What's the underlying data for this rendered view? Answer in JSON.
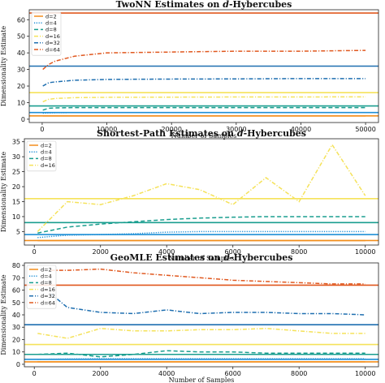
{
  "figure": {
    "colors": {
      "d2": "#f28e1c",
      "d4": "#1f8fd6",
      "d8": "#1a9e8f",
      "d16": "#f5e25a",
      "d32": "#1f6fb0",
      "d64": "#e0581f"
    },
    "ref_colors": {
      "d2": "#f28e1c",
      "d4": "#1f8fd6",
      "d8": "#1a9e8f",
      "d16": "#f5e25a",
      "d32": "#1f6fb0",
      "d64": "#e0581f"
    }
  },
  "chart_data": [
    {
      "type": "line",
      "title": "TwoNN Estimates on d-Hybercubes",
      "title_prefix": "TwoNN Estimates on ",
      "title_var": "d",
      "title_suffix": "-Hybercubes",
      "xlabel": "Number of Samples",
      "ylabel": "Dimensionality Estimate",
      "xlim": [
        -2000,
        52000
      ],
      "ylim": [
        -2,
        66
      ],
      "xticks": [
        0,
        10000,
        20000,
        30000,
        40000,
        50000
      ],
      "yticks": [
        0,
        10,
        20,
        30,
        40,
        50,
        60
      ],
      "grid": false,
      "legend": "top-left",
      "reference_lines": [
        {
          "key": "d2",
          "value": 2
        },
        {
          "key": "d4",
          "value": 4
        },
        {
          "key": "d8",
          "value": 8
        },
        {
          "key": "d16",
          "value": 16
        },
        {
          "key": "d32",
          "value": 32
        },
        {
          "key": "d64",
          "value": 64
        }
      ],
      "series": [
        {
          "name": "d=2",
          "key": "d2",
          "style": "solid",
          "x": [
            100,
            1000,
            2000,
            5000,
            10000,
            20000,
            30000,
            40000,
            50000
          ],
          "values": [
            2,
            2,
            2,
            2,
            2,
            2,
            2,
            2,
            2
          ]
        },
        {
          "name": "d=4",
          "key": "d4",
          "style": "dotted",
          "x": [
            100,
            1000,
            2000,
            5000,
            10000,
            20000,
            30000,
            40000,
            50000
          ],
          "values": [
            3.6,
            3.8,
            3.9,
            4,
            4,
            4,
            4,
            4,
            4
          ]
        },
        {
          "name": "d=8",
          "key": "d8",
          "style": "dashed",
          "x": [
            100,
            1000,
            2000,
            5000,
            10000,
            20000,
            30000,
            40000,
            50000
          ],
          "values": [
            5.5,
            6.6,
            6.8,
            7,
            7,
            7,
            7,
            7,
            7
          ]
        },
        {
          "name": "d=16",
          "key": "d16",
          "style": "dashdot",
          "x": [
            100,
            1000,
            2000,
            5000,
            10000,
            20000,
            30000,
            40000,
            50000
          ],
          "values": [
            10.5,
            12,
            12.5,
            13,
            13.2,
            13.3,
            13.4,
            13.4,
            13.5
          ]
        },
        {
          "name": "d=32",
          "key": "d32",
          "style": "dashdot",
          "x": [
            100,
            1000,
            2000,
            5000,
            10000,
            20000,
            30000,
            40000,
            50000
          ],
          "values": [
            20,
            22,
            22.5,
            23.5,
            24,
            24.2,
            24.3,
            24.5,
            24.5
          ]
        },
        {
          "name": "d=64",
          "key": "d64",
          "style": "dashdot",
          "x": [
            100,
            1000,
            2000,
            5000,
            10000,
            20000,
            30000,
            40000,
            50000
          ],
          "values": [
            30,
            33,
            35,
            38,
            40,
            40.5,
            41,
            41,
            41.5
          ]
        }
      ]
    },
    {
      "type": "line",
      "title": "Shortest-Path Estimates on d-Hybercubes",
      "title_prefix": "Shortest-Path Estimates on ",
      "title_var": "d",
      "title_suffix": "-Hybercubes",
      "xlabel": "Number of Samples",
      "ylabel": "Dimensionality Estimate",
      "xlim": [
        -300,
        10400
      ],
      "ylim": [
        0.5,
        36
      ],
      "xticks": [
        0,
        2000,
        4000,
        6000,
        8000,
        10000
      ],
      "yticks": [
        5,
        10,
        15,
        20,
        25,
        30,
        35
      ],
      "grid": false,
      "legend": "top-left",
      "reference_lines": [
        {
          "key": "d2",
          "value": 2
        },
        {
          "key": "d4",
          "value": 4
        },
        {
          "key": "d8",
          "value": 8
        },
        {
          "key": "d16",
          "value": 16
        }
      ],
      "series": [
        {
          "name": "d=2",
          "key": "d2",
          "style": "solid",
          "x": [
            100,
            1000,
            2000,
            3000,
            4000,
            5000,
            6000,
            7000,
            8000,
            9000,
            10000
          ],
          "values": [
            2,
            2,
            2,
            2,
            2,
            2,
            2,
            2,
            2,
            2,
            2
          ]
        },
        {
          "name": "d=4",
          "key": "d4",
          "style": "dotted",
          "x": [
            100,
            1000,
            2000,
            3000,
            4000,
            5000,
            6000,
            7000,
            8000,
            9000,
            10000
          ],
          "values": [
            3,
            3.8,
            4,
            4.3,
            4.8,
            5,
            5,
            5,
            5,
            5,
            5
          ]
        },
        {
          "name": "d=8",
          "key": "d8",
          "style": "dashed",
          "x": [
            100,
            1000,
            2000,
            3000,
            4000,
            5000,
            6000,
            7000,
            8000,
            9000,
            10000
          ],
          "values": [
            4.5,
            6.5,
            7.5,
            8.3,
            9,
            9.5,
            9.8,
            10,
            10,
            10,
            10
          ]
        },
        {
          "name": "d=16",
          "key": "d16",
          "style": "dashdot",
          "x": [
            100,
            1000,
            2000,
            3000,
            4000,
            5000,
            6000,
            7000,
            8000,
            9000,
            10000
          ],
          "values": [
            5,
            15,
            14,
            17,
            21,
            19,
            14,
            23,
            15,
            34,
            17
          ]
        }
      ]
    },
    {
      "type": "line",
      "title": "GeoMLE Estimates on d-Hybercubes",
      "title_prefix": "GeoMLE Estimates on ",
      "title_var": "d",
      "title_suffix": "-Hybercubes",
      "xlabel": "Number of Samples",
      "ylabel": "Dimensionality Estimate",
      "xlim": [
        -300,
        10400
      ],
      "ylim": [
        -2,
        82
      ],
      "xticks": [
        0,
        2000,
        4000,
        6000,
        8000,
        10000
      ],
      "yticks": [
        0,
        10,
        20,
        30,
        40,
        50,
        60,
        70,
        80
      ],
      "grid": false,
      "legend": "top-left",
      "reference_lines": [
        {
          "key": "d2",
          "value": 2
        },
        {
          "key": "d4",
          "value": 4
        },
        {
          "key": "d8",
          "value": 8
        },
        {
          "key": "d16",
          "value": 16
        },
        {
          "key": "d32",
          "value": 32
        },
        {
          "key": "d64",
          "value": 64
        }
      ],
      "series": [
        {
          "name": "d=2",
          "key": "d2",
          "style": "solid",
          "x": [
            100,
            1000,
            2000,
            3000,
            4000,
            5000,
            6000,
            7000,
            8000,
            9000,
            10000
          ],
          "values": [
            2,
            2,
            2,
            2,
            2,
            2,
            2,
            2,
            2,
            2,
            2
          ]
        },
        {
          "name": "d=4",
          "key": "d4",
          "style": "dotted",
          "x": [
            100,
            1000,
            2000,
            3000,
            4000,
            5000,
            6000,
            7000,
            8000,
            9000,
            10000
          ],
          "values": [
            4,
            4.3,
            4.5,
            4.5,
            4.5,
            4.5,
            4.5,
            4.5,
            4.5,
            4.5,
            4.5
          ]
        },
        {
          "name": "d=8",
          "key": "d8",
          "style": "dashed",
          "x": [
            100,
            1000,
            2000,
            3000,
            4000,
            5000,
            6000,
            7000,
            8000,
            9000,
            10000
          ],
          "values": [
            8,
            9,
            6,
            8,
            11,
            10,
            10,
            9,
            9,
            9,
            9
          ]
        },
        {
          "name": "d=16",
          "key": "d16",
          "style": "dashdot",
          "x": [
            100,
            1000,
            2000,
            3000,
            4000,
            5000,
            6000,
            7000,
            8000,
            9000,
            10000
          ],
          "values": [
            25,
            21,
            29,
            27,
            27,
            28,
            28,
            29,
            27,
            25,
            25
          ]
        },
        {
          "name": "d=32",
          "key": "d32",
          "style": "dashdot",
          "x": [
            500,
            1000,
            2000,
            3000,
            4000,
            5000,
            6000,
            7000,
            8000,
            9000,
            10000
          ],
          "values": [
            57,
            46,
            42,
            41,
            44,
            41,
            42,
            42,
            41,
            41,
            40
          ]
        },
        {
          "name": "d=64",
          "key": "d64",
          "style": "dashdot",
          "x": [
            500,
            1000,
            2000,
            3000,
            4000,
            5000,
            6000,
            7000,
            8000,
            9000,
            10000
          ],
          "values": [
            76,
            76,
            77,
            74,
            72,
            70,
            68,
            67,
            66,
            65,
            65
          ]
        }
      ]
    }
  ]
}
